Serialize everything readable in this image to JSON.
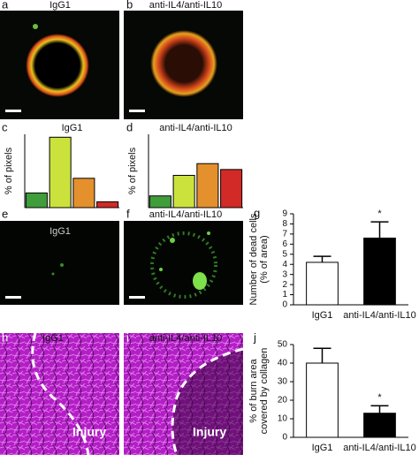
{
  "images": [
    {
      "label": "a",
      "title": "IgG1"
    },
    {
      "label": "b",
      "title": "anti-IL4/anti-IL10"
    },
    {
      "label": "e",
      "title": "IgG1"
    },
    {
      "label": "f",
      "title": "anti-IL4/anti-IL10"
    },
    {
      "label": "h",
      "title": "IgG1",
      "annotation": "Injury"
    },
    {
      "label": "i",
      "title": "anti-IL4/anti-IL10",
      "annotation": "Injury"
    }
  ],
  "chart_data": [
    {
      "label": "c",
      "type": "bar",
      "title": "IgG1",
      "y_label": [
        "% of pixels"
      ],
      "values": [
        5,
        24,
        10,
        2
      ],
      "colors": [
        "#3f9e3a",
        "#cbe23c",
        "#e4902c",
        "#d22a26"
      ],
      "ylim": [
        0,
        25
      ]
    },
    {
      "label": "d",
      "type": "bar",
      "title": "anti-IL4/anti-IL10",
      "y_label": [
        "% of pixels"
      ],
      "values": [
        4,
        11,
        15,
        13
      ],
      "colors": [
        "#3f9e3a",
        "#cbe23c",
        "#e4902c",
        "#d22a26"
      ],
      "ylim": [
        0,
        25
      ]
    },
    {
      "label": "g",
      "type": "bar",
      "y_label": [
        "Number of dead cells",
        "(% of area)"
      ],
      "categories": [
        "IgG1",
        "anti-IL4/anti-IL10"
      ],
      "values": [
        4.2,
        6.6
      ],
      "errors": [
        0.6,
        1.6
      ],
      "significance": [
        null,
        "*"
      ],
      "colors": [
        "#ffffff",
        "#000000"
      ],
      "ylim": [
        0,
        9
      ],
      "yticks": [
        0,
        1,
        2,
        3,
        4,
        5,
        6,
        7,
        8,
        9
      ]
    },
    {
      "label": "j",
      "type": "bar",
      "y_label": [
        "% of burn area",
        "covered by collagen"
      ],
      "categories": [
        "IgG1",
        "anti-IL4/anti-IL10"
      ],
      "values": [
        40,
        13
      ],
      "errors": [
        8,
        4
      ],
      "significance": [
        null,
        "*"
      ],
      "colors": [
        "#ffffff",
        "#000000"
      ],
      "ylim": [
        0,
        50
      ],
      "yticks": [
        0,
        10,
        20,
        30,
        40,
        50
      ]
    }
  ]
}
